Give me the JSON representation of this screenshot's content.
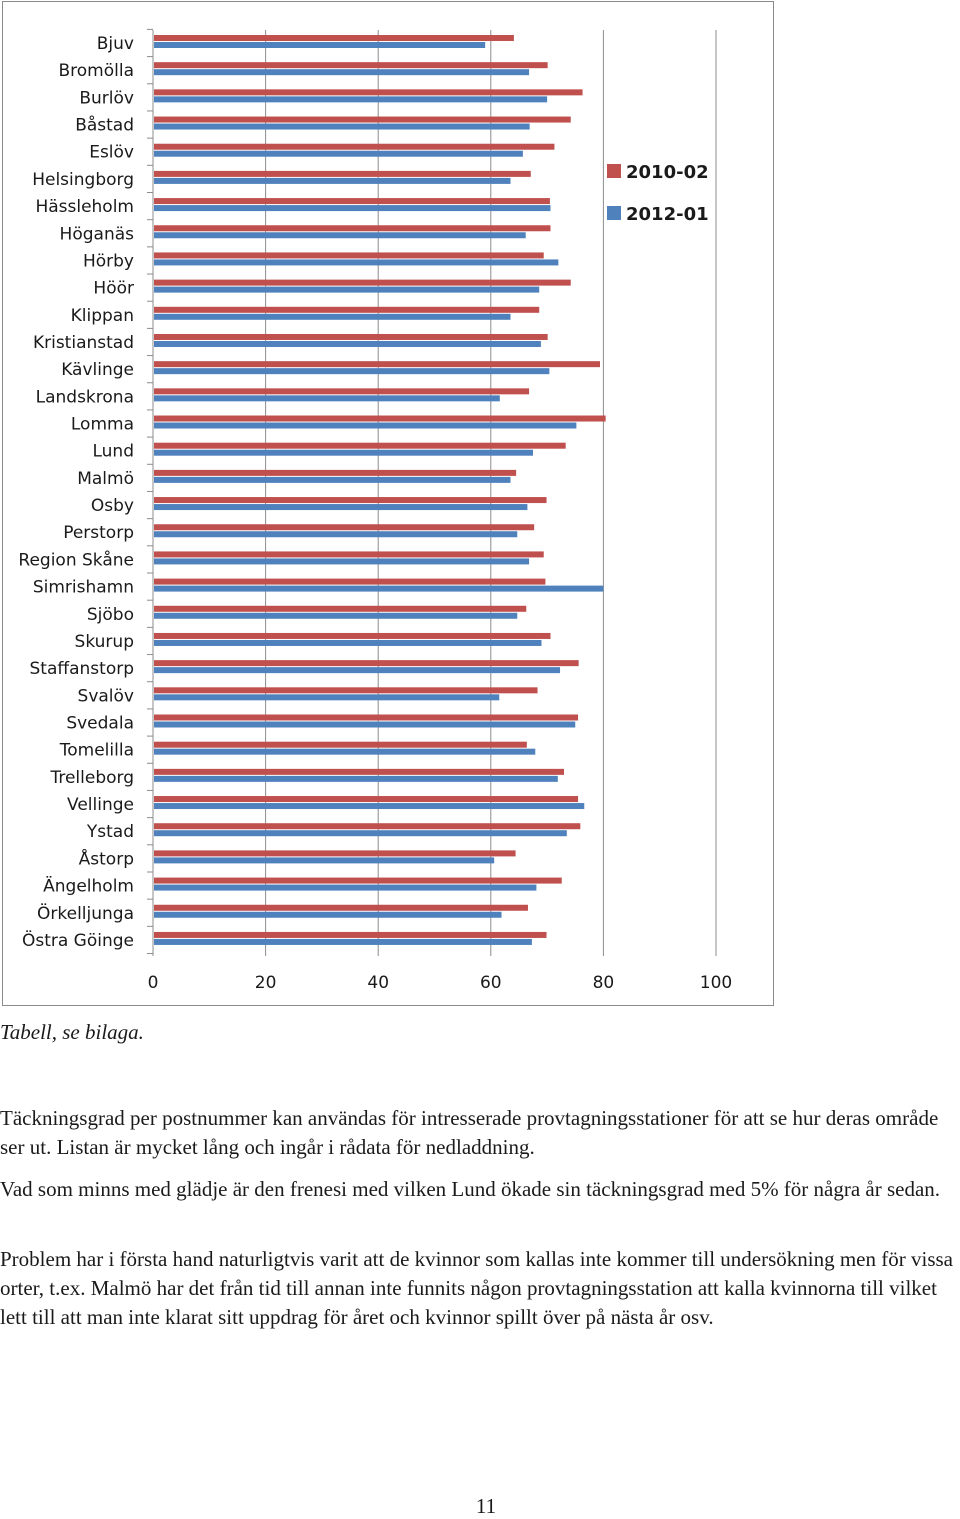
{
  "chart_data": {
    "type": "bar",
    "orientation": "horizontal",
    "categories": [
      "Bjuv",
      "Bromölla",
      "Burlöv",
      "Båstad",
      "Eslöv",
      "Helsingborg",
      "Hässleholm",
      "Höganäs",
      "Hörby",
      "Höör",
      "Klippan",
      "Kristianstad",
      "Kävlinge",
      "Landskrona",
      "Lomma",
      "Lund",
      "Malmö",
      "Osby",
      "Perstorp",
      "Region Skåne",
      "Simrishamn",
      "Sjöbo",
      "Skurup",
      "Staffanstorp",
      "Svalöv",
      "Svedala",
      "Tomelilla",
      "Trelleborg",
      "Vellinge",
      "Ystad",
      "Åstorp",
      "Ängelholm",
      "Örkelljunga",
      "Östra Göinge"
    ],
    "series": [
      {
        "name": "2010-02",
        "color": "#c0504d",
        "values": [
          64.1,
          70.1,
          76.3,
          74.2,
          71.3,
          67.1,
          70.5,
          70.6,
          69.4,
          74.2,
          68.6,
          70.1,
          79.4,
          66.8,
          80.4,
          73.3,
          64.5,
          69.9,
          67.7,
          69.4,
          69.7,
          66.3,
          70.6,
          75.6,
          68.3,
          75.5,
          66.4,
          73.0,
          75.5,
          75.9,
          64.4,
          72.6,
          66.6,
          69.9
        ]
      },
      {
        "name": "2012-01",
        "color": "#4f81bd",
        "values": [
          59.0,
          66.8,
          70.0,
          66.9,
          65.7,
          63.5,
          70.6,
          66.2,
          72.0,
          68.6,
          63.5,
          68.9,
          70.4,
          61.6,
          75.2,
          67.5,
          63.5,
          66.5,
          64.7,
          66.8,
          80.0,
          64.7,
          69.0,
          72.3,
          61.5,
          75.0,
          67.9,
          71.9,
          76.6,
          73.5,
          60.6,
          68.1,
          61.9,
          67.3
        ]
      }
    ],
    "xticks": [
      "0",
      "20",
      "40",
      "60",
      "80",
      "100"
    ],
    "xlim": [
      0,
      100
    ],
    "grid": "vertical",
    "legend_position": "right",
    "title": "",
    "xlabel": "",
    "ylabel": ""
  },
  "caption": "Tabell, se bilaga.",
  "paragraphs": [
    "Täckningsgrad per postnummer kan användas för intresserade provtagningsstationer för att se hur deras område ser ut. Listan är mycket lång och ingår i rådata för nedladdning.",
    "Vad som minns med glädje är den frenesi med vilken Lund ökade sin täckningsgrad med 5% för några år sedan.",
    "Problem har i första hand naturligtvis varit att de kvinnor som kallas inte kommer till undersökning men för vissa orter, t.ex. Malmö har det från tid till annan inte funnits någon provtagningsstation att kalla kvinnorna till vilket lett till att man inte klarat sitt uppdrag för året och kvinnor spillt över på nästa år osv."
  ],
  "page_number": "11"
}
